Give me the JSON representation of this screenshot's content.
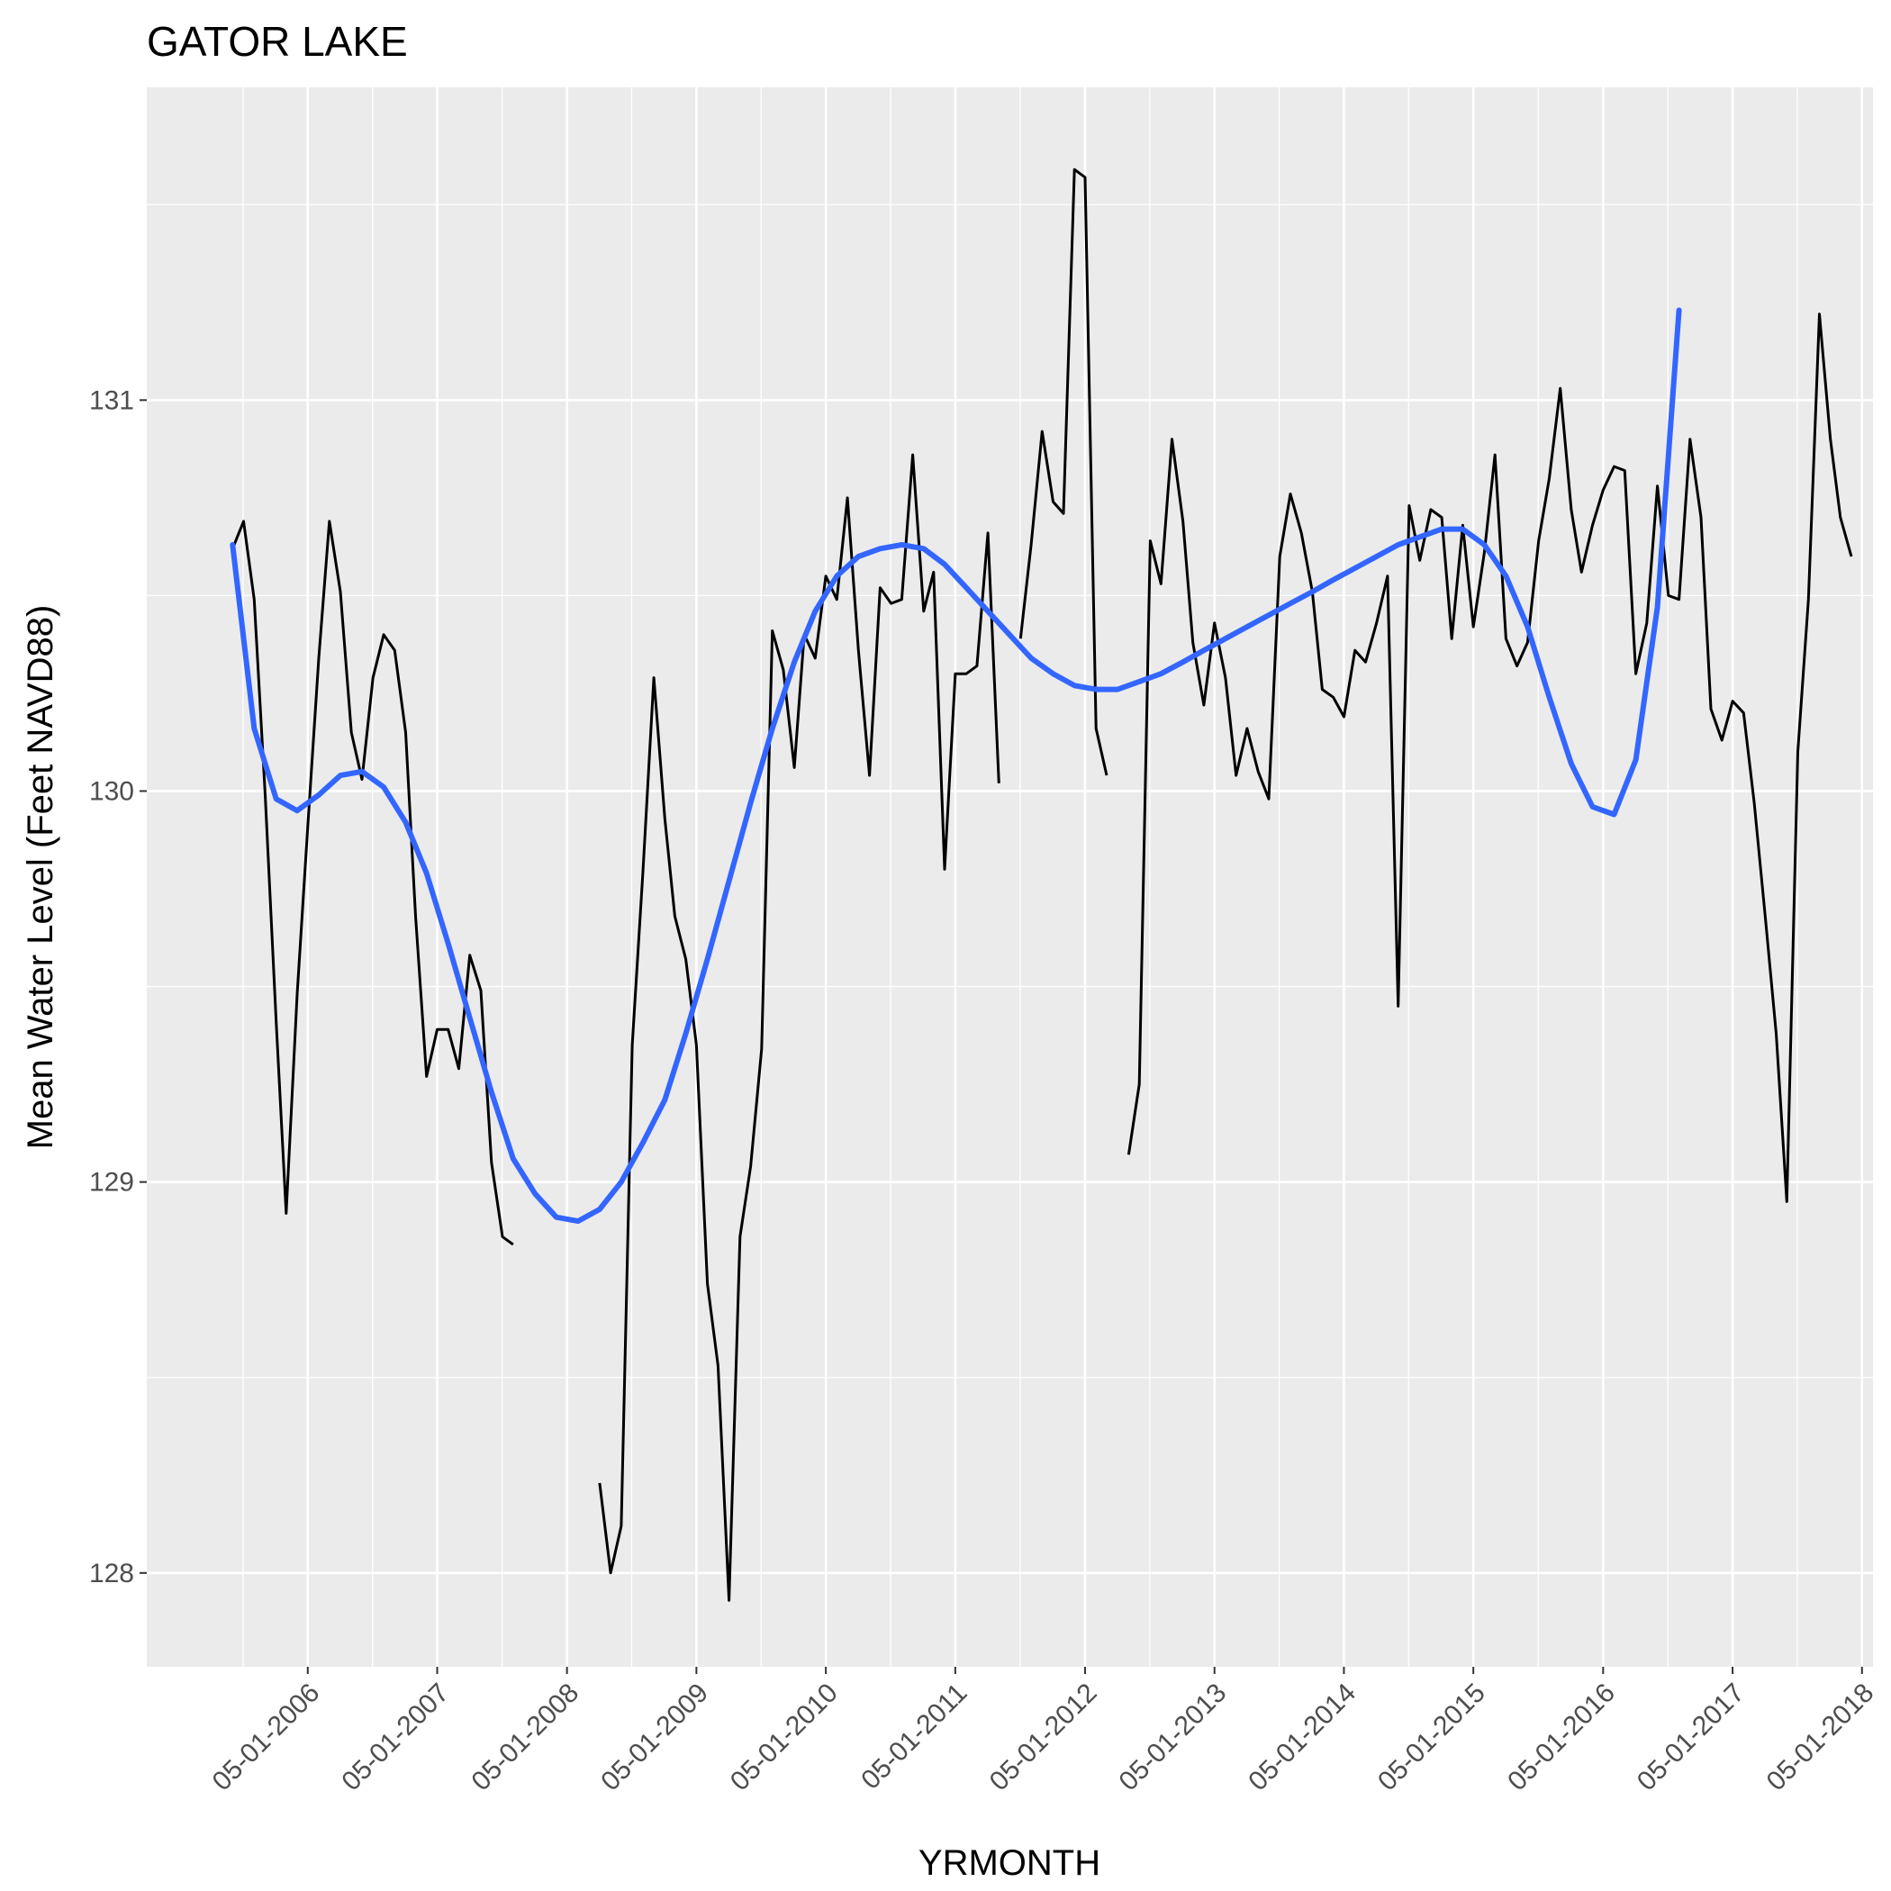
{
  "chart_data": {
    "type": "line",
    "title": "GATOR LAKE",
    "xlabel": "YRMONTH",
    "ylabel": "Mean Water Level (Feet NAVD88)",
    "xlim": [
      "2005-02-01",
      "2018-06-01"
    ],
    "ylim": [
      127.76,
      131.8
    ],
    "x_ticks": [
      "05-01-2006",
      "05-01-2007",
      "05-01-2008",
      "05-01-2009",
      "05-01-2010",
      "05-01-2011",
      "05-01-2012",
      "05-01-2013",
      "05-01-2014",
      "05-01-2015",
      "05-01-2016",
      "05-01-2017",
      "05-01-2018"
    ],
    "y_ticks": [
      128,
      129,
      130,
      131
    ],
    "grid": true,
    "legend": "none",
    "colors": {
      "panel": "#ebebeb",
      "grid": "#ffffff",
      "series": "#000000",
      "smooth": "#3366ff"
    },
    "series": [
      {
        "segments": [
          [
            [
              "2005-10-01",
              130.62
            ],
            [
              "2005-11-01",
              130.69
            ],
            [
              "2005-12-01",
              130.49
            ],
            [
              "2006-01-01",
              129.99
            ],
            [
              "2006-02-01",
              129.41
            ],
            [
              "2006-03-01",
              128.92
            ],
            [
              "2006-04-01",
              129.48
            ],
            [
              "2006-05-01",
              129.91
            ],
            [
              "2006-06-01",
              130.34
            ],
            [
              "2006-07-01",
              130.69
            ],
            [
              "2006-08-01",
              130.51
            ],
            [
              "2006-09-01",
              130.15
            ],
            [
              "2006-10-01",
              130.03
            ],
            [
              "2006-11-01",
              130.29
            ],
            [
              "2006-12-01",
              130.4
            ],
            [
              "2007-01-01",
              130.36
            ],
            [
              "2007-02-01",
              130.15
            ],
            [
              "2007-03-01",
              129.68
            ],
            [
              "2007-04-01",
              129.27
            ],
            [
              "2007-05-01",
              129.39
            ],
            [
              "2007-06-01",
              129.39
            ],
            [
              "2007-07-01",
              129.29
            ],
            [
              "2007-08-01",
              129.58
            ],
            [
              "2007-09-01",
              129.49
            ],
            [
              "2007-10-01",
              129.05
            ],
            [
              "2007-11-01",
              128.86
            ],
            [
              "2007-12-01",
              128.84
            ]
          ],
          [
            [
              "2008-08-01",
              128.23
            ],
            [
              "2008-09-01",
              128.0
            ],
            [
              "2008-10-01",
              128.12
            ],
            [
              "2008-11-01",
              129.35
            ],
            [
              "2008-12-01",
              129.79
            ],
            [
              "2009-01-01",
              130.29
            ],
            [
              "2009-02-01",
              129.93
            ],
            [
              "2009-03-01",
              129.68
            ],
            [
              "2009-04-01",
              129.57
            ],
            [
              "2009-05-01",
              129.35
            ],
            [
              "2009-06-01",
              128.74
            ],
            [
              "2009-07-01",
              128.53
            ],
            [
              "2009-08-01",
              127.93
            ],
            [
              "2009-09-01",
              128.86
            ],
            [
              "2009-10-01",
              129.04
            ],
            [
              "2009-11-01",
              129.34
            ],
            [
              "2009-12-01",
              130.41
            ],
            [
              "2010-01-01",
              130.31
            ],
            [
              "2010-02-01",
              130.06
            ],
            [
              "2010-03-01",
              130.4
            ],
            [
              "2010-04-01",
              130.34
            ],
            [
              "2010-05-01",
              130.55
            ],
            [
              "2010-06-01",
              130.49
            ],
            [
              "2010-07-01",
              130.75
            ],
            [
              "2010-08-01",
              130.36
            ],
            [
              "2010-09-01",
              130.04
            ],
            [
              "2010-10-01",
              130.52
            ],
            [
              "2010-11-01",
              130.48
            ],
            [
              "2010-12-01",
              130.49
            ],
            [
              "2011-01-01",
              130.86
            ],
            [
              "2011-02-01",
              130.46
            ],
            [
              "2011-03-01",
              130.56
            ],
            [
              "2011-04-01",
              129.8
            ],
            [
              "2011-05-01",
              130.3
            ],
            [
              "2011-06-01",
              130.3
            ],
            [
              "2011-07-01",
              130.32
            ],
            [
              "2011-08-01",
              130.66
            ],
            [
              "2011-09-01",
              130.02
            ]
          ],
          [
            [
              "2011-11-01",
              130.39
            ],
            [
              "2011-12-01",
              130.63
            ],
            [
              "2012-01-01",
              130.92
            ],
            [
              "2012-02-01",
              130.74
            ],
            [
              "2012-03-01",
              130.71
            ],
            [
              "2012-04-01",
              131.59
            ],
            [
              "2012-05-01",
              131.57
            ],
            [
              "2012-06-01",
              130.16
            ],
            [
              "2012-07-01",
              130.04
            ]
          ],
          [
            [
              "2012-09-01",
              129.07
            ],
            [
              "2012-10-01",
              129.25
            ],
            [
              "2012-11-01",
              130.64
            ],
            [
              "2012-12-01",
              130.53
            ],
            [
              "2013-01-01",
              130.9
            ],
            [
              "2013-02-01",
              130.69
            ],
            [
              "2013-03-01",
              130.38
            ],
            [
              "2013-04-01",
              130.22
            ],
            [
              "2013-05-01",
              130.43
            ],
            [
              "2013-06-01",
              130.29
            ],
            [
              "2013-07-01",
              130.04
            ],
            [
              "2013-08-01",
              130.16
            ],
            [
              "2013-09-01",
              130.05
            ],
            [
              "2013-10-01",
              129.98
            ],
            [
              "2013-11-01",
              130.6
            ],
            [
              "2013-12-01",
              130.76
            ],
            [
              "2014-01-01",
              130.66
            ],
            [
              "2014-02-01",
              130.51
            ],
            [
              "2014-03-01",
              130.26
            ],
            [
              "2014-04-01",
              130.24
            ],
            [
              "2014-05-01",
              130.19
            ],
            [
              "2014-06-01",
              130.36
            ],
            [
              "2014-07-01",
              130.33
            ],
            [
              "2014-08-01",
              130.43
            ],
            [
              "2014-09-01",
              130.55
            ],
            [
              "2014-10-01",
              129.45
            ],
            [
              "2014-11-01",
              130.73
            ],
            [
              "2014-12-01",
              130.59
            ],
            [
              "2015-01-01",
              130.72
            ],
            [
              "2015-02-01",
              130.7
            ],
            [
              "2015-03-01",
              130.39
            ],
            [
              "2015-04-01",
              130.68
            ],
            [
              "2015-05-01",
              130.42
            ],
            [
              "2015-06-01",
              130.61
            ],
            [
              "2015-07-01",
              130.86
            ],
            [
              "2015-08-01",
              130.39
            ],
            [
              "2015-09-01",
              130.32
            ],
            [
              "2015-10-01",
              130.38
            ],
            [
              "2015-11-01",
              130.64
            ],
            [
              "2015-12-01",
              130.8
            ],
            [
              "2016-01-01",
              131.03
            ],
            [
              "2016-02-01",
              130.72
            ],
            [
              "2016-03-01",
              130.56
            ],
            [
              "2016-04-01",
              130.68
            ],
            [
              "2016-05-01",
              130.77
            ],
            [
              "2016-06-01",
              130.83
            ],
            [
              "2016-07-01",
              130.82
            ],
            [
              "2016-08-01",
              130.3
            ],
            [
              "2016-09-01",
              130.43
            ],
            [
              "2016-10-01",
              130.78
            ],
            [
              "2016-11-01",
              130.5
            ],
            [
              "2016-12-01",
              130.49
            ],
            [
              "2017-01-01",
              130.9
            ],
            [
              "2017-02-01",
              130.7
            ],
            [
              "2017-03-01",
              130.21
            ],
            [
              "2017-04-01",
              130.13
            ],
            [
              "2017-05-01",
              130.23
            ],
            [
              "2017-06-01",
              130.2
            ],
            [
              "2017-07-01",
              129.97
            ],
            [
              "2017-08-01",
              129.68
            ],
            [
              "2017-09-01",
              129.38
            ],
            [
              "2017-10-01",
              128.95
            ],
            [
              "2017-11-01",
              130.1
            ],
            [
              "2017-12-01",
              130.49
            ],
            [
              "2018-01-01",
              131.22
            ],
            [
              "2018-02-01",
              130.9
            ],
            [
              "2018-03-01",
              130.7
            ],
            [
              "2018-04-01",
              130.6
            ]
          ]
        ]
      },
      {
        "values": [
          [
            "2005-10-01",
            130.63
          ],
          [
            "2005-12-01",
            130.16
          ],
          [
            "2006-02-01",
            129.98
          ],
          [
            "2006-04-01",
            129.95
          ],
          [
            "2006-06-01",
            129.99
          ],
          [
            "2006-08-01",
            130.04
          ],
          [
            "2006-10-01",
            130.05
          ],
          [
            "2006-12-01",
            130.01
          ],
          [
            "2007-02-01",
            129.92
          ],
          [
            "2007-04-01",
            129.79
          ],
          [
            "2007-06-01",
            129.61
          ],
          [
            "2007-08-01",
            129.42
          ],
          [
            "2007-10-01",
            129.23
          ],
          [
            "2007-12-01",
            129.06
          ],
          [
            "2008-02-01",
            128.97
          ],
          [
            "2008-04-01",
            128.91
          ],
          [
            "2008-06-01",
            128.9
          ],
          [
            "2008-08-01",
            128.93
          ],
          [
            "2008-10-01",
            129.0
          ],
          [
            "2008-12-01",
            129.1
          ],
          [
            "2009-02-01",
            129.21
          ],
          [
            "2009-04-01",
            129.38
          ],
          [
            "2009-06-01",
            129.57
          ],
          [
            "2009-08-01",
            129.77
          ],
          [
            "2009-10-01",
            129.97
          ],
          [
            "2009-12-01",
            130.16
          ],
          [
            "2010-02-01",
            130.33
          ],
          [
            "2010-04-01",
            130.46
          ],
          [
            "2010-06-01",
            130.55
          ],
          [
            "2010-08-01",
            130.6
          ],
          [
            "2010-10-01",
            130.62
          ],
          [
            "2010-12-01",
            130.63
          ],
          [
            "2011-02-01",
            130.62
          ],
          [
            "2011-04-01",
            130.58
          ],
          [
            "2011-06-01",
            130.52
          ],
          [
            "2011-08-01",
            130.46
          ],
          [
            "2011-10-01",
            130.4
          ],
          [
            "2011-12-01",
            130.34
          ],
          [
            "2012-02-01",
            130.3
          ],
          [
            "2012-04-01",
            130.27
          ],
          [
            "2012-06-01",
            130.26
          ],
          [
            "2012-08-01",
            130.26
          ],
          [
            "2012-10-01",
            130.28
          ],
          [
            "2012-12-01",
            130.3
          ],
          [
            "2013-02-01",
            130.33
          ],
          [
            "2013-04-01",
            130.36
          ],
          [
            "2013-06-01",
            130.39
          ],
          [
            "2013-08-01",
            130.42
          ],
          [
            "2013-10-01",
            130.45
          ],
          [
            "2013-12-01",
            130.48
          ],
          [
            "2014-02-01",
            130.51
          ],
          [
            "2014-04-01",
            130.54
          ],
          [
            "2014-06-01",
            130.57
          ],
          [
            "2014-08-01",
            130.6
          ],
          [
            "2014-10-01",
            130.63
          ],
          [
            "2014-12-01",
            130.65
          ],
          [
            "2015-02-01",
            130.67
          ],
          [
            "2015-04-01",
            130.67
          ],
          [
            "2015-06-01",
            130.63
          ],
          [
            "2015-08-01",
            130.55
          ],
          [
            "2015-10-01",
            130.42
          ],
          [
            "2015-12-01",
            130.24
          ],
          [
            "2016-02-01",
            130.07
          ],
          [
            "2016-04-01",
            129.96
          ],
          [
            "2016-06-01",
            129.94
          ],
          [
            "2016-08-01",
            130.08
          ],
          [
            "2016-10-01",
            130.47
          ],
          [
            "2016-12-01",
            131.23
          ]
        ]
      }
    ]
  }
}
